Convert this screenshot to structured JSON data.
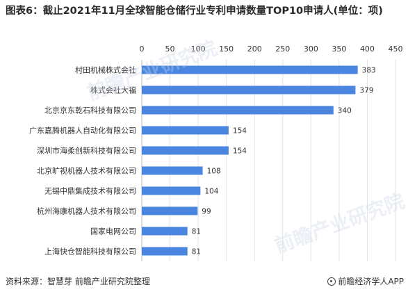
{
  "title": "图表6：截止2021年11月全球智能仓储行业专利申请数量TOP10申请人(单位：项)",
  "footer": {
    "source": "资料来源：智慧芽 前瞻产业研究院整理",
    "brand": "前瞻经济学人APP"
  },
  "watermark_text": "前瞻产业研究院",
  "colors": {
    "bar": "#4a86e0",
    "grid": "#e3e3e3",
    "text": "#333333"
  },
  "chart_data": {
    "type": "bar",
    "orientation": "horizontal",
    "title": "图表6：截止2021年11月全球智能仓储行业专利申请数量TOP10申请人(单位：项)",
    "categories": [
      "村田机械株式会社",
      "株式会社大福",
      "北京京东乾石科技有限公司",
      "广东嘉腾机器人自动化有限公司",
      "深圳市海柔创新科技有限公司",
      "北京旷视机器人技术有限公司",
      "无锡中鼎集成技术有限公司",
      "杭州海康机器人技术有限公司",
      "国家电网公司",
      "上海快仓智能科技有限公司"
    ],
    "values": [
      383,
      379,
      340,
      154,
      154,
      108,
      104,
      99,
      81,
      81
    ],
    "xlim": [
      0,
      450
    ],
    "xticks": [
      0,
      50,
      100,
      150,
      200,
      250,
      300,
      350,
      400,
      450
    ],
    "axis_position": "top",
    "grid": true,
    "data_labels": true
  }
}
